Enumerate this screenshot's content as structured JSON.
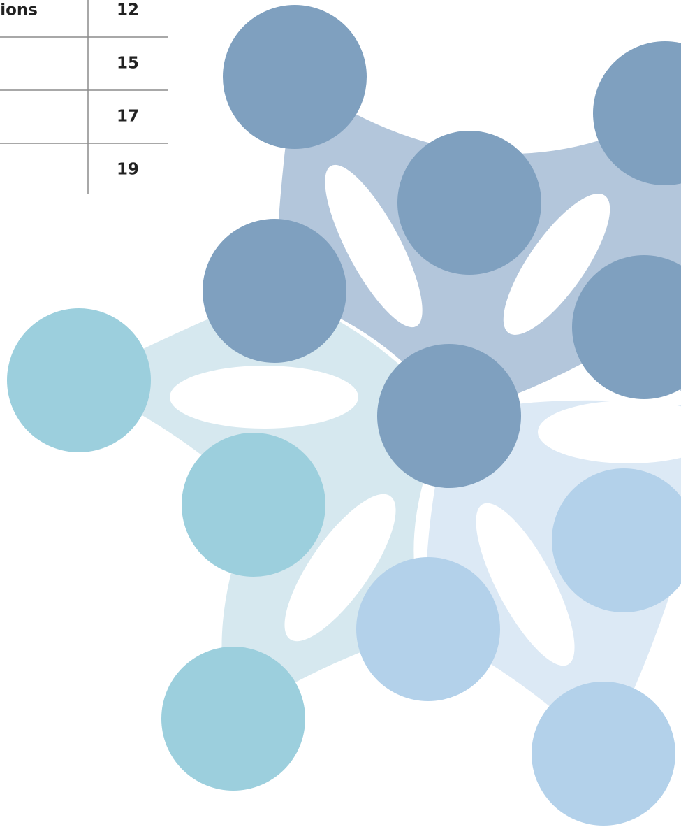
{
  "toc": {
    "rows": [
      {
        "label": "tions",
        "page": 12
      },
      {
        "page": 15
      },
      {
        "page": 17
      },
      {
        "page": 19
      }
    ]
  }
}
